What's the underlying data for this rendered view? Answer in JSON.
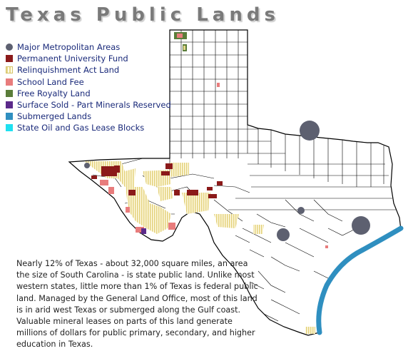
{
  "title": "Texas Public Lands",
  "legend": [
    {
      "label": "Major Metropolitan Areas",
      "color": "#5d6070",
      "shape": "circle"
    },
    {
      "label": "Permanent University Fund",
      "color": "#8b1a1a",
      "shape": "square"
    },
    {
      "label": "Relinquishment Act Land",
      "color": "#e6d88a",
      "shape": "hatch"
    },
    {
      "label": "School Land Fee",
      "color": "#e87c7c",
      "shape": "square"
    },
    {
      "label": "Free Royalty Land",
      "color": "#5a7d3a",
      "shape": "square"
    },
    {
      "label": "Surface Sold - Part Minerals Reserved",
      "color": "#5b2a8a",
      "shape": "square"
    },
    {
      "label": "Submerged Lands",
      "color": "#2f8fc0",
      "shape": "square"
    },
    {
      "label": "State Oil and Gas Lease Blocks",
      "color": "#1fe0f0",
      "shape": "square"
    }
  ],
  "description": "Nearly 12% of Texas - about 32,000 square miles, an area the size of South Carolina - is state public land. Unlike most western states, little more than 1% of Texas is federal public land. Managed by the General Land Office, most of this land is in arid west Texas or submerged along the Gulf coast. Valuable mineral leases on parts of this land generate millions of dollars for public primary, secondary, and higher education in Texas."
}
